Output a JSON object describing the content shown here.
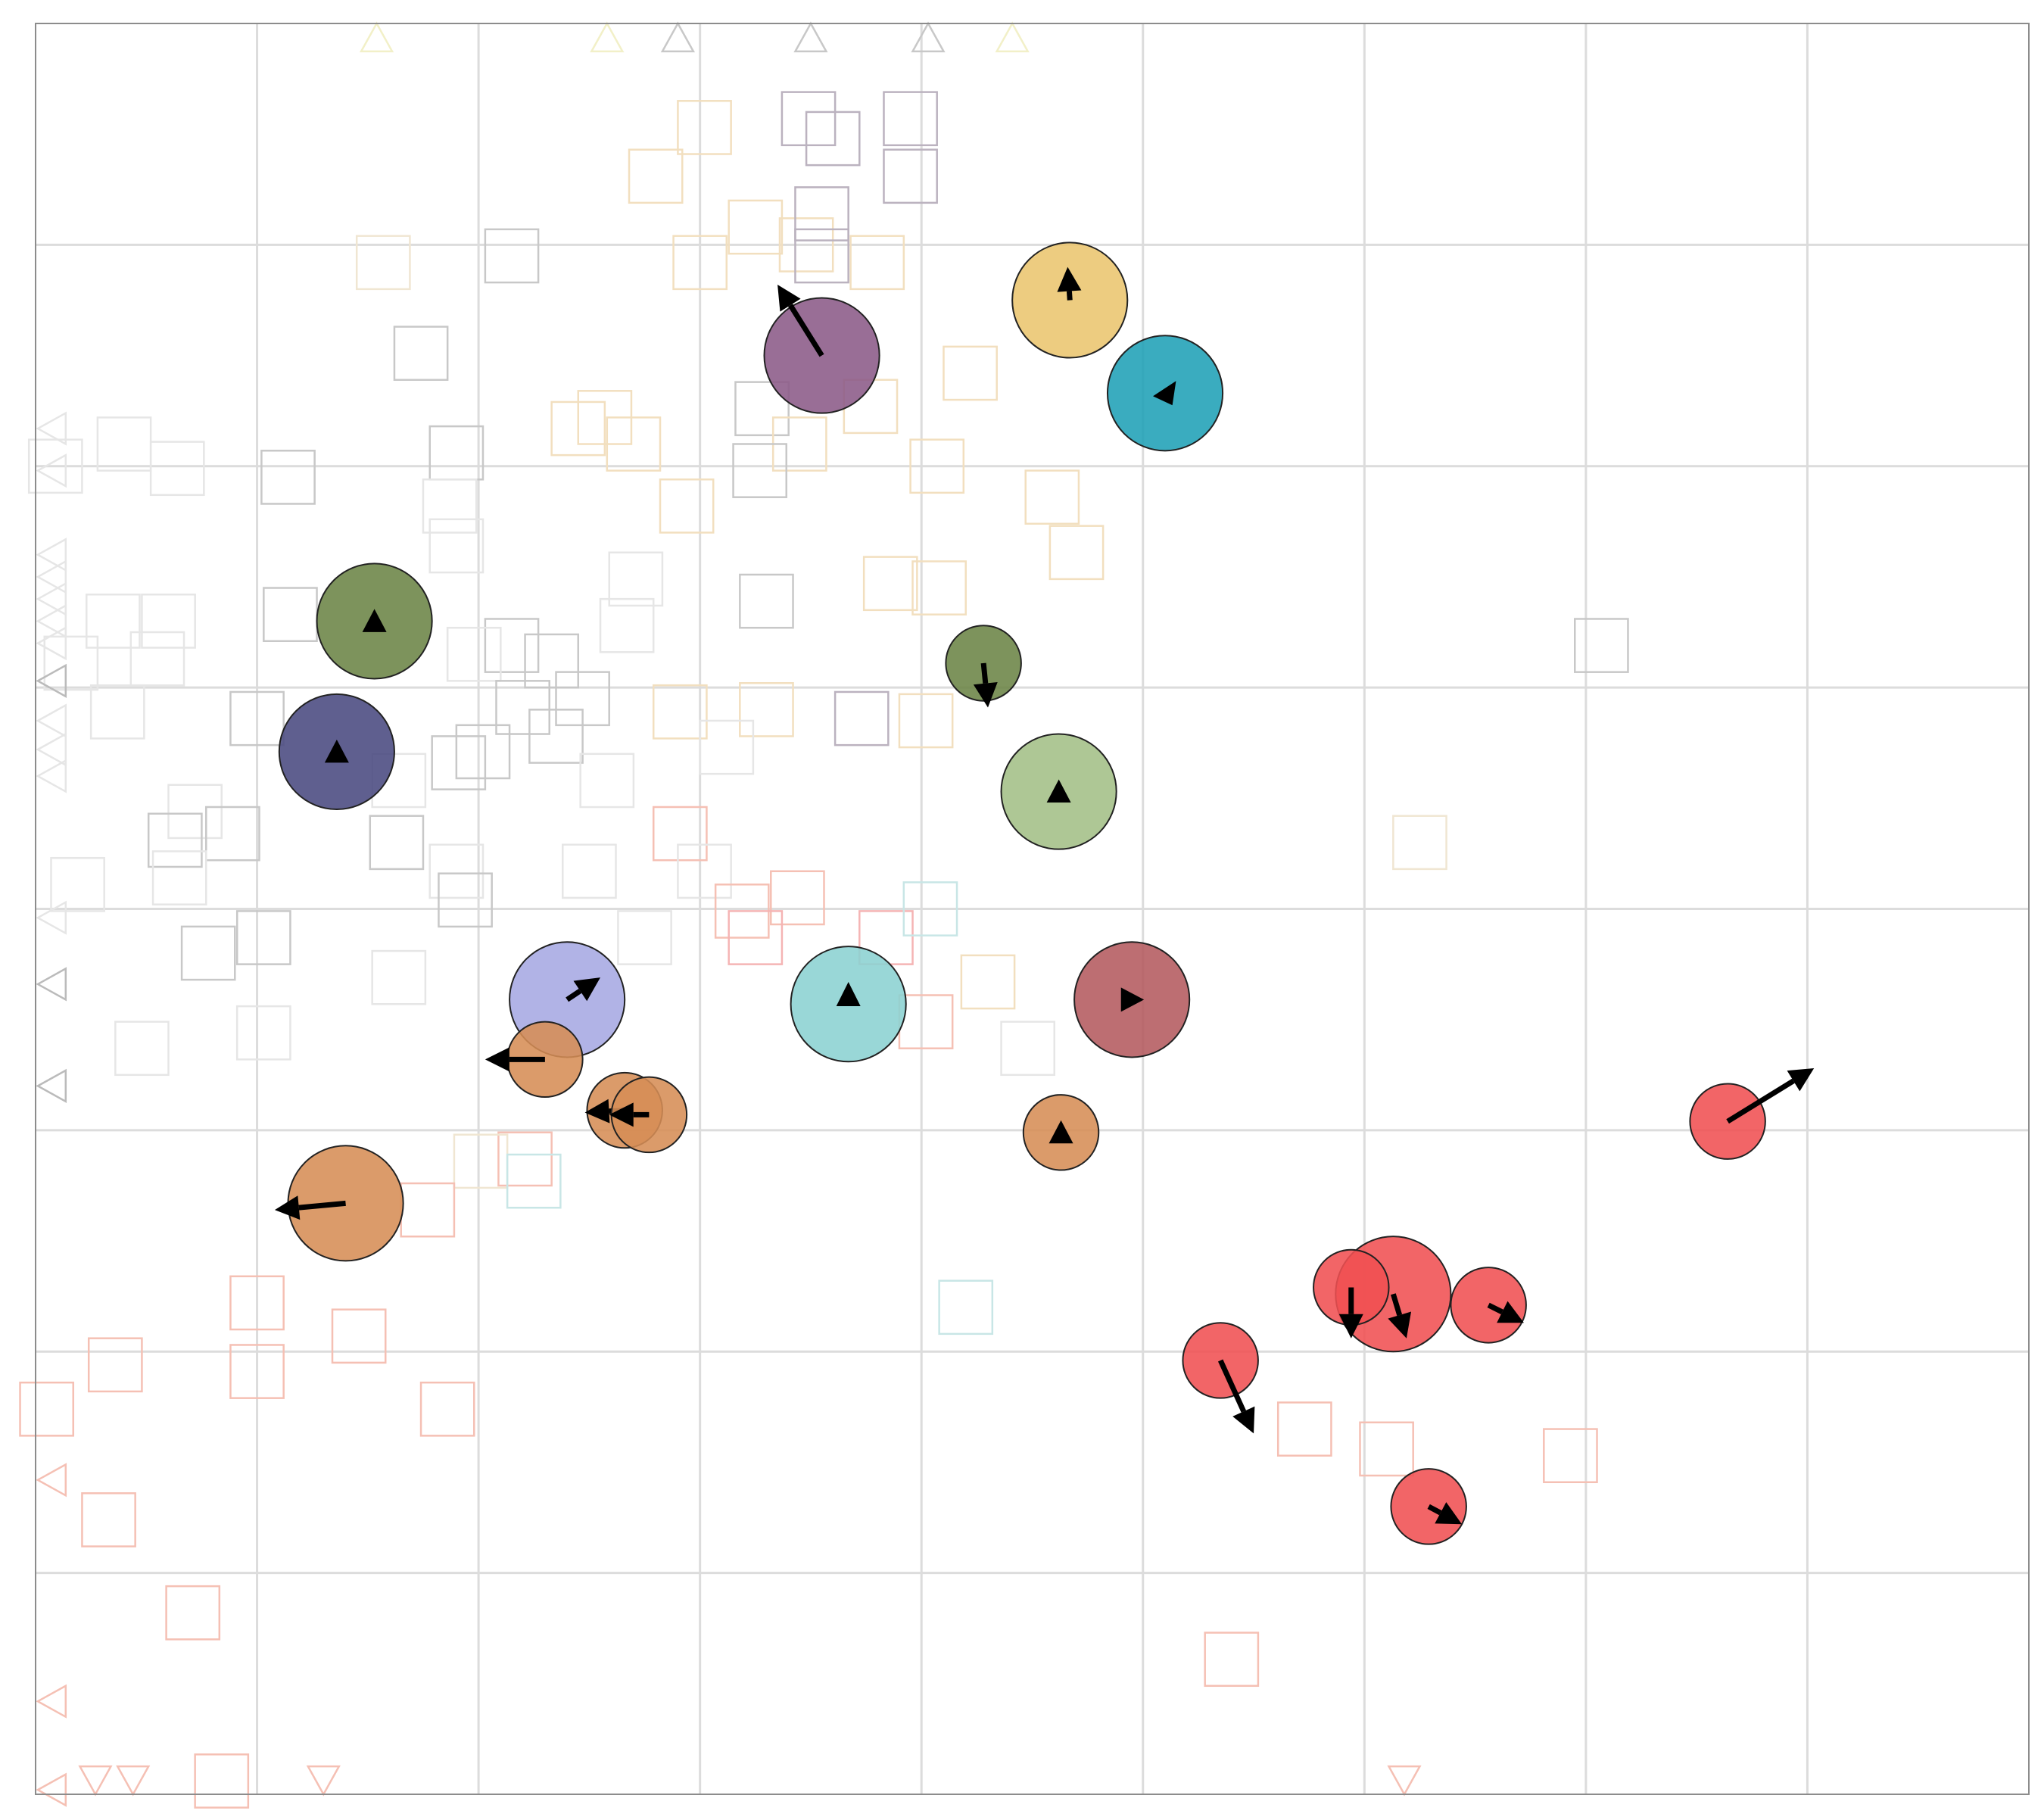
{
  "chart_data": {
    "type": "scatter",
    "title": "",
    "xlabel": "",
    "ylabel": "",
    "grid": true,
    "legend": "none",
    "xlim": [
      0,
      9
    ],
    "ylim": [
      0,
      8
    ],
    "colors": {
      "frame": "#8c8c8c",
      "grid": "#dcdcdc",
      "arrow": "#000000",
      "marker_stroke": "#222222"
    },
    "agents": [
      {
        "x": 3.55,
        "y": 6.5,
        "r": 0.26,
        "color": "#8b5a87",
        "dx": -0.2,
        "dy": 0.32,
        "head": "tip"
      },
      {
        "x": 4.67,
        "y": 6.75,
        "r": 0.26,
        "color": "#ebc56e",
        "dx": -0.01,
        "dy": 0.15,
        "head": "tip"
      },
      {
        "x": 5.1,
        "y": 6.33,
        "r": 0.26,
        "color": "#1fa0b6",
        "dx": -0.03,
        "dy": 0.0,
        "head": "left"
      },
      {
        "x": 1.53,
        "y": 5.3,
        "r": 0.26,
        "color": "#6b8446",
        "dx": 0.0,
        "dy": 0.0,
        "head": "up"
      },
      {
        "x": 1.36,
        "y": 4.71,
        "r": 0.26,
        "color": "#49497f",
        "dx": 0.0,
        "dy": 0.05,
        "head": "up"
      },
      {
        "x": 4.28,
        "y": 5.11,
        "r": 0.17,
        "color": "#6b8446",
        "dx": 0.02,
        "dy": -0.2,
        "head": "tip"
      },
      {
        "x": 4.62,
        "y": 4.53,
        "r": 0.26,
        "color": "#a3bf86",
        "dx": 0.0,
        "dy": 0.0,
        "head": "up"
      },
      {
        "x": 4.95,
        "y": 3.59,
        "r": 0.26,
        "color": "#b45a5f",
        "dx": 0.0,
        "dy": 0.0,
        "head": "right"
      },
      {
        "x": 2.4,
        "y": 3.59,
        "r": 0.26,
        "color": "#a6a9e2",
        "dx": 0.15,
        "dy": 0.1,
        "head": "tip"
      },
      {
        "x": 3.67,
        "y": 3.57,
        "r": 0.26,
        "color": "#8bd1d1",
        "dx": 0.0,
        "dy": 0.1,
        "head": "tip"
      },
      {
        "x": 2.3,
        "y": 3.32,
        "r": 0.17,
        "color": "#d68d55",
        "dx": -0.27,
        "dy": 0.0,
        "head": "tip"
      },
      {
        "x": 2.66,
        "y": 3.09,
        "r": 0.17,
        "color": "#d68d55",
        "dx": -0.18,
        "dy": -0.01,
        "head": "tip"
      },
      {
        "x": 2.77,
        "y": 3.07,
        "r": 0.17,
        "color": "#d68d55",
        "dx": -0.18,
        "dy": 0.0,
        "head": "tip"
      },
      {
        "x": 4.63,
        "y": 2.99,
        "r": 0.17,
        "color": "#d68d55",
        "dx": 0.0,
        "dy": 0.0,
        "head": "up"
      },
      {
        "x": 1.4,
        "y": 2.67,
        "r": 0.26,
        "color": "#d68d55",
        "dx": -0.32,
        "dy": -0.03,
        "head": "tip"
      },
      {
        "x": 7.64,
        "y": 3.04,
        "r": 0.17,
        "color": "#f05052",
        "dx": 0.39,
        "dy": 0.24,
        "head": "tip"
      },
      {
        "x": 6.13,
        "y": 2.26,
        "r": 0.26,
        "color": "#f05052",
        "dx": 0.06,
        "dy": -0.2,
        "head": "tip"
      },
      {
        "x": 5.94,
        "y": 2.29,
        "r": 0.17,
        "color": "#f05052",
        "dx": 0.0,
        "dy": -0.23,
        "head": "tip"
      },
      {
        "x": 6.56,
        "y": 2.21,
        "r": 0.17,
        "color": "#f05052",
        "dx": 0.16,
        "dy": -0.08,
        "head": "tip"
      },
      {
        "x": 5.35,
        "y": 1.96,
        "r": 0.17,
        "color": "#f05052",
        "dx": 0.15,
        "dy": -0.33,
        "head": "tip"
      },
      {
        "x": 6.29,
        "y": 1.3,
        "r": 0.17,
        "color": "#f05052",
        "dx": 0.15,
        "dy": -0.08,
        "head": "tip"
      }
    ],
    "ghost_squares": [
      {
        "x": 3.49,
        "y": 7.57,
        "c": "#bbb2bf"
      },
      {
        "x": 3.6,
        "y": 7.48,
        "c": "#bbb2bf"
      },
      {
        "x": 3.95,
        "y": 7.57,
        "c": "#bbb2bf"
      },
      {
        "x": 3.95,
        "y": 7.31,
        "c": "#bbb2bf"
      },
      {
        "x": 3.02,
        "y": 7.53,
        "c": "#f2dfbf"
      },
      {
        "x": 2.8,
        "y": 7.31,
        "c": "#f2dfbf"
      },
      {
        "x": 3.25,
        "y": 7.08,
        "c": "#f2dfbf"
      },
      {
        "x": 3.48,
        "y": 7.0,
        "c": "#f2dfbf"
      },
      {
        "x": 3.8,
        "y": 6.92,
        "c": "#f2dfbf"
      },
      {
        "x": 3.0,
        "y": 6.92,
        "c": "#f2dfbf"
      },
      {
        "x": 3.55,
        "y": 7.14,
        "c": "#bbb2bf"
      },
      {
        "x": 3.55,
        "y": 6.95,
        "c": "#bbb2bf"
      },
      {
        "x": 2.15,
        "y": 6.95,
        "c": "#c8c8c8"
      },
      {
        "x": 1.57,
        "y": 6.92,
        "c": "#f0e6d2"
      },
      {
        "x": 1.74,
        "y": 6.51,
        "c": "#c8c8c8"
      },
      {
        "x": 4.22,
        "y": 6.42,
        "c": "#f2dfbf"
      },
      {
        "x": 3.77,
        "y": 6.27,
        "c": "#f2dfbf"
      },
      {
        "x": 3.28,
        "y": 6.26,
        "c": "#c8c8c8"
      },
      {
        "x": 3.45,
        "y": 6.1,
        "c": "#f2dfbf"
      },
      {
        "x": 4.07,
        "y": 6.0,
        "c": "#f2dfbf"
      },
      {
        "x": 3.27,
        "y": 5.98,
        "c": "#c8c8c8"
      },
      {
        "x": 2.45,
        "y": 6.17,
        "c": "#f2dfbf"
      },
      {
        "x": 2.7,
        "y": 6.1,
        "c": "#f2dfbf"
      },
      {
        "x": 2.57,
        "y": 6.22,
        "c": "#f2dfbf"
      },
      {
        "x": 1.9,
        "y": 6.06,
        "c": "#c8c8c8"
      },
      {
        "x": 1.14,
        "y": 5.95,
        "c": "#c8c8c8"
      },
      {
        "x": 0.64,
        "y": 5.99,
        "c": "#e6e6e6"
      },
      {
        "x": 0.4,
        "y": 6.1,
        "c": "#e6e6e6"
      },
      {
        "x": 0.09,
        "y": 6.0,
        "c": "#e6e6e6"
      },
      {
        "x": 1.87,
        "y": 5.82,
        "c": "#e6e6e6"
      },
      {
        "x": 2.94,
        "y": 5.82,
        "c": "#f2dfbf"
      },
      {
        "x": 1.9,
        "y": 5.64,
        "c": "#e6e6e6"
      },
      {
        "x": 4.59,
        "y": 5.86,
        "c": "#f2dfbf"
      },
      {
        "x": 4.7,
        "y": 5.61,
        "c": "#f2dfbf"
      },
      {
        "x": 3.86,
        "y": 5.47,
        "c": "#f2dfbf"
      },
      {
        "x": 4.08,
        "y": 5.45,
        "c": "#f2dfbf"
      },
      {
        "x": 3.3,
        "y": 5.39,
        "c": "#c8c8c8"
      },
      {
        "x": 2.71,
        "y": 5.49,
        "c": "#e6e6e6"
      },
      {
        "x": 2.67,
        "y": 5.28,
        "c": "#e6e6e6"
      },
      {
        "x": 1.15,
        "y": 5.33,
        "c": "#c8c8c8"
      },
      {
        "x": 0.6,
        "y": 5.3,
        "c": "#e6e6e6"
      },
      {
        "x": 0.35,
        "y": 5.3,
        "c": "#e6e6e6"
      },
      {
        "x": 0.55,
        "y": 5.13,
        "c": "#e6e6e6"
      },
      {
        "x": 0.16,
        "y": 5.11,
        "c": "#e6e6e6"
      },
      {
        "x": 2.15,
        "y": 5.19,
        "c": "#c8c8c8"
      },
      {
        "x": 2.33,
        "y": 5.12,
        "c": "#c8c8c8"
      },
      {
        "x": 1.98,
        "y": 5.15,
        "c": "#e6e6e6"
      },
      {
        "x": 2.47,
        "y": 4.95,
        "c": "#c8c8c8"
      },
      {
        "x": 2.2,
        "y": 4.91,
        "c": "#c8c8c8"
      },
      {
        "x": 2.35,
        "y": 4.78,
        "c": "#c8c8c8"
      },
      {
        "x": 1.0,
        "y": 4.86,
        "c": "#c8c8c8"
      },
      {
        "x": 0.37,
        "y": 4.89,
        "c": "#e6e6e6"
      },
      {
        "x": 2.91,
        "y": 4.89,
        "c": "#f2dfbf"
      },
      {
        "x": 3.3,
        "y": 4.9,
        "c": "#f2dfbf"
      },
      {
        "x": 3.73,
        "y": 4.86,
        "c": "#bbb2bf"
      },
      {
        "x": 4.02,
        "y": 4.85,
        "c": "#f2dfbf"
      },
      {
        "x": 3.12,
        "y": 4.73,
        "c": "#e6e6e6"
      },
      {
        "x": 1.91,
        "y": 4.66,
        "c": "#c8c8c8"
      },
      {
        "x": 2.02,
        "y": 4.71,
        "c": "#c8c8c8"
      },
      {
        "x": 1.64,
        "y": 4.58,
        "c": "#e6e6e6"
      },
      {
        "x": 2.58,
        "y": 4.58,
        "c": "#e6e6e6"
      },
      {
        "x": 0.72,
        "y": 4.44,
        "c": "#e6e6e6"
      },
      {
        "x": 0.63,
        "y": 4.31,
        "c": "#c8c8c8"
      },
      {
        "x": 0.89,
        "y": 4.34,
        "c": "#c8c8c8"
      },
      {
        "x": 1.63,
        "y": 4.3,
        "c": "#c8c8c8"
      },
      {
        "x": 0.19,
        "y": 4.11,
        "c": "#e6e6e6"
      },
      {
        "x": 0.65,
        "y": 4.14,
        "c": "#e6e6e6"
      },
      {
        "x": 1.9,
        "y": 4.17,
        "c": "#e6e6e6"
      },
      {
        "x": 1.94,
        "y": 4.04,
        "c": "#c8c8c8"
      },
      {
        "x": 2.5,
        "y": 4.17,
        "c": "#e6e6e6"
      },
      {
        "x": 2.91,
        "y": 4.34,
        "c": "#f5c0b4"
      },
      {
        "x": 3.02,
        "y": 4.17,
        "c": "#e6e6e6"
      },
      {
        "x": 3.44,
        "y": 4.05,
        "c": "#f5c0b4"
      },
      {
        "x": 3.19,
        "y": 3.99,
        "c": "#f5c0b4"
      },
      {
        "x": 3.25,
        "y": 3.87,
        "c": "#f5b4b4"
      },
      {
        "x": 3.84,
        "y": 3.87,
        "c": "#f5b4b4"
      },
      {
        "x": 4.04,
        "y": 4.0,
        "c": "#c8e6e6"
      },
      {
        "x": 2.75,
        "y": 3.87,
        "c": "#e6e6e6"
      },
      {
        "x": 1.03,
        "y": 3.87,
        "c": "#c8c8c8"
      },
      {
        "x": 0.78,
        "y": 3.8,
        "c": "#c8c8c8"
      },
      {
        "x": 1.64,
        "y": 3.69,
        "c": "#e6e6e6"
      },
      {
        "x": 1.03,
        "y": 3.44,
        "c": "#e6e6e6"
      },
      {
        "x": 0.48,
        "y": 3.37,
        "c": "#e6e6e6"
      },
      {
        "x": 4.3,
        "y": 3.67,
        "c": "#f2dfbf"
      },
      {
        "x": 4.02,
        "y": 3.49,
        "c": "#f5c0b4"
      },
      {
        "x": 4.48,
        "y": 3.37,
        "c": "#e6e6e6"
      },
      {
        "x": 6.25,
        "y": 4.3,
        "c": "#f0e6d2"
      },
      {
        "x": 7.07,
        "y": 5.19,
        "c": "#c8c8c8"
      },
      {
        "x": 2.21,
        "y": 2.87,
        "c": "#f5c0b4"
      },
      {
        "x": 2.01,
        "y": 2.86,
        "c": "#f0e6d2"
      },
      {
        "x": 2.25,
        "y": 2.77,
        "c": "#c8e6e6"
      },
      {
        "x": 1.77,
        "y": 2.64,
        "c": "#f5c0b4"
      },
      {
        "x": 1.0,
        "y": 2.22,
        "c": "#f5c0b4"
      },
      {
        "x": 1.46,
        "y": 2.07,
        "c": "#f5c0b4"
      },
      {
        "x": 0.36,
        "y": 1.94,
        "c": "#f5c0b4"
      },
      {
        "x": 1.0,
        "y": 1.91,
        "c": "#f5c0b4"
      },
      {
        "x": 1.86,
        "y": 1.74,
        "c": "#f5c0b4"
      },
      {
        "x": 0.05,
        "y": 1.74,
        "c": "#f5c0b4"
      },
      {
        "x": 4.2,
        "y": 2.2,
        "c": "#c8e6e6"
      },
      {
        "x": 5.73,
        "y": 1.65,
        "c": "#f5c0b4"
      },
      {
        "x": 6.1,
        "y": 1.56,
        "c": "#f5c0b4"
      },
      {
        "x": 6.93,
        "y": 1.53,
        "c": "#f5c0b4"
      },
      {
        "x": 0.33,
        "y": 1.24,
        "c": "#f5c0b4"
      },
      {
        "x": 0.71,
        "y": 0.82,
        "c": "#f5c0b4"
      },
      {
        "x": 5.4,
        "y": 0.61,
        "c": "#f5c0b4"
      },
      {
        "x": 0.84,
        "y": 0.06,
        "c": "#f5c0b4"
      }
    ],
    "edge_triangles": [
      {
        "x": 1.54,
        "y": 7.93,
        "dir": "up",
        "c": "#f2f0c8"
      },
      {
        "x": 2.58,
        "y": 7.93,
        "dir": "up",
        "c": "#f2f0c8"
      },
      {
        "x": 2.9,
        "y": 7.93,
        "dir": "up",
        "c": "#c8c8c8"
      },
      {
        "x": 3.5,
        "y": 7.93,
        "dir": "up",
        "c": "#c8c8c8"
      },
      {
        "x": 4.03,
        "y": 7.93,
        "dir": "up",
        "c": "#c8c8c8"
      },
      {
        "x": 4.41,
        "y": 7.93,
        "dir": "up",
        "c": "#f2f0c8"
      },
      {
        "x": 0.08,
        "y": 6.17,
        "dir": "left",
        "c": "#e6e6e6"
      },
      {
        "x": 0.08,
        "y": 5.98,
        "dir": "left",
        "c": "#e6e6e6"
      },
      {
        "x": 0.08,
        "y": 5.6,
        "dir": "left",
        "c": "#e6e6e6"
      },
      {
        "x": 0.08,
        "y": 5.5,
        "dir": "left",
        "c": "#e6e6e6"
      },
      {
        "x": 0.08,
        "y": 5.4,
        "dir": "left",
        "c": "#e6e6e6"
      },
      {
        "x": 0.08,
        "y": 5.3,
        "dir": "left",
        "c": "#e6e6e6"
      },
      {
        "x": 0.08,
        "y": 5.2,
        "dir": "left",
        "c": "#e6e6e6"
      },
      {
        "x": 0.08,
        "y": 5.03,
        "dir": "left",
        "c": "#bbbbbb"
      },
      {
        "x": 0.08,
        "y": 4.85,
        "dir": "left",
        "c": "#e6e6e6"
      },
      {
        "x": 0.08,
        "y": 4.72,
        "dir": "left",
        "c": "#e6e6e6"
      },
      {
        "x": 0.08,
        "y": 4.6,
        "dir": "left",
        "c": "#e6e6e6"
      },
      {
        "x": 0.08,
        "y": 3.96,
        "dir": "left",
        "c": "#e6e6e6"
      },
      {
        "x": 0.08,
        "y": 3.66,
        "dir": "left",
        "c": "#bbbbbb"
      },
      {
        "x": 0.08,
        "y": 3.2,
        "dir": "left",
        "c": "#bbbbbb"
      },
      {
        "x": 0.08,
        "y": 1.42,
        "dir": "left",
        "c": "#f5c0b4"
      },
      {
        "x": 0.08,
        "y": 0.42,
        "dir": "left",
        "c": "#f5c0b4"
      },
      {
        "x": 0.08,
        "y": 0.02,
        "dir": "left",
        "c": "#f5c0b4"
      },
      {
        "x": 0.27,
        "y": 0.07,
        "dir": "down",
        "c": "#f5c0b4"
      },
      {
        "x": 0.44,
        "y": 0.07,
        "dir": "down",
        "c": "#f5c0b4"
      },
      {
        "x": 1.3,
        "y": 0.07,
        "dir": "down",
        "c": "#f5c0b4"
      },
      {
        "x": 6.18,
        "y": 0.07,
        "dir": "down",
        "c": "#f5c0b4"
      }
    ]
  }
}
